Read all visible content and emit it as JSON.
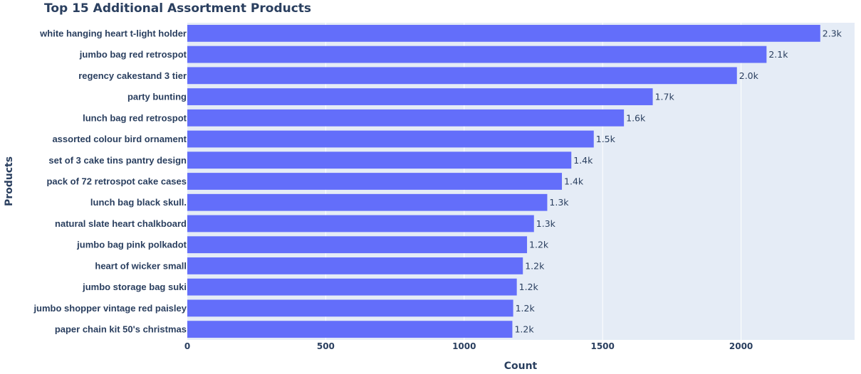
{
  "chart_data": {
    "type": "bar",
    "orientation": "horizontal",
    "title": "Top 15 Additional Assortment Products",
    "xlabel": "Count",
    "ylabel": "Products",
    "xlim": [
      0,
      2410
    ],
    "x_ticks": [
      0,
      500,
      1000,
      1500,
      2000
    ],
    "x_tick_labels": [
      "0",
      "500",
      "1000",
      "1500",
      "2000"
    ],
    "grid": true,
    "legend": "none",
    "bar_color": "#636efa",
    "plot_background": "#e5ecf6",
    "categories": [
      "white hanging heart t-light holder",
      "jumbo bag red retrospot",
      "regency cakestand 3 tier",
      "party bunting",
      "lunch bag red retrospot",
      "assorted colour bird ornament",
      "set of 3 cake tins pantry design",
      "pack of 72 retrospot cake cases",
      "lunch bag  black skull.",
      "natural slate heart chalkboard",
      "jumbo bag pink polkadot",
      "heart of wicker small",
      "jumbo storage bag suki",
      "jumbo shopper vintage red paisley",
      "paper chain kit 50's christmas"
    ],
    "values": [
      2286,
      2092,
      1985,
      1681,
      1577,
      1468,
      1387,
      1353,
      1300,
      1252,
      1227,
      1212,
      1190,
      1177,
      1174
    ],
    "value_labels": [
      "2.3k",
      "2.1k",
      "2.0k",
      "1.7k",
      "1.6k",
      "1.5k",
      "1.4k",
      "1.4k",
      "1.3k",
      "1.3k",
      "1.2k",
      "1.2k",
      "1.2k",
      "1.2k",
      "1.2k"
    ]
  }
}
